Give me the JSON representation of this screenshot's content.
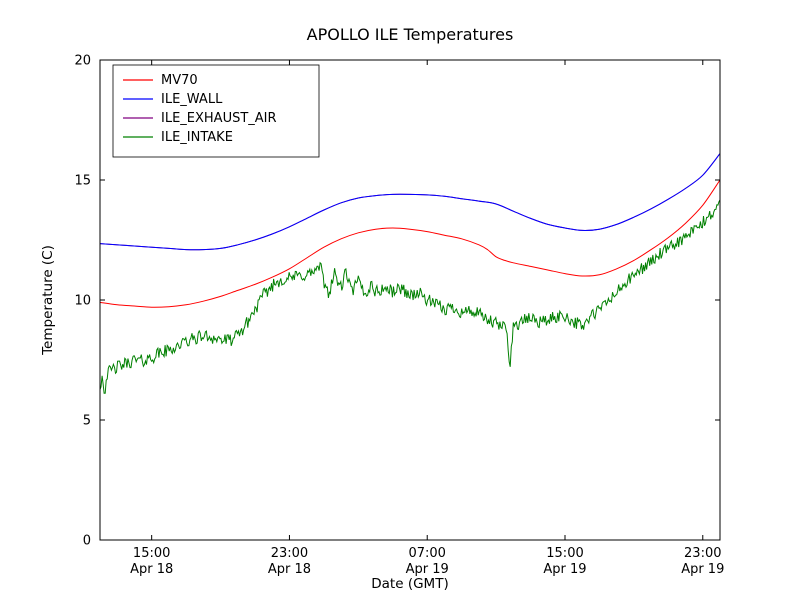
{
  "figure": {
    "background": "#ffffff"
  },
  "chart_data": {
    "type": "line",
    "title": "APOLLO ILE Temperatures",
    "xlabel": "Date (GMT)",
    "ylabel": "Temperature (C)",
    "grid": false,
    "ylim": [
      0,
      20
    ],
    "y_ticks": [
      0,
      5,
      10,
      15,
      20
    ],
    "x_axis": {
      "unit": "hours since Apr 18 12:00 GMT",
      "range": [
        0,
        36
      ],
      "ticks": [
        {
          "t": 3,
          "time": "15:00",
          "date": "Apr 18"
        },
        {
          "t": 11,
          "time": "23:00",
          "date": "Apr 18"
        },
        {
          "t": 19,
          "time": "07:00",
          "date": "Apr 19"
        },
        {
          "t": 27,
          "time": "15:00",
          "date": "Apr 19"
        },
        {
          "t": 35,
          "time": "23:00",
          "date": "Apr 19"
        }
      ]
    },
    "legend": {
      "position": "upper-left"
    },
    "series": [
      {
        "name": "MV70",
        "color": "#ff0000",
        "zorder": 3,
        "noise": 0,
        "x": [
          0,
          1,
          2,
          3,
          4,
          5,
          6,
          7,
          8,
          9,
          10,
          11,
          12,
          13,
          14,
          15,
          16,
          17,
          18,
          19,
          20,
          21,
          22,
          22.5,
          23,
          23.5,
          24,
          25,
          26,
          27,
          28,
          29,
          30,
          31,
          32,
          33,
          34,
          35,
          36
        ],
        "y": [
          9.9,
          9.8,
          9.75,
          9.7,
          9.72,
          9.8,
          9.95,
          10.15,
          10.4,
          10.65,
          10.95,
          11.3,
          11.75,
          12.2,
          12.55,
          12.8,
          12.95,
          13.0,
          12.95,
          12.85,
          12.7,
          12.55,
          12.3,
          12.1,
          11.8,
          11.65,
          11.55,
          11.4,
          11.25,
          11.1,
          11.0,
          11.05,
          11.3,
          11.65,
          12.1,
          12.6,
          13.2,
          13.95,
          15.0
        ]
      },
      {
        "name": "ILE_WALL",
        "color": "#0000ff",
        "zorder": 2,
        "noise": 0,
        "x": [
          0,
          2,
          4,
          5,
          6,
          7,
          8,
          9,
          10,
          11,
          12,
          13,
          14,
          15,
          16,
          17,
          18,
          19,
          20,
          21,
          22,
          23,
          24,
          25,
          26,
          27,
          28,
          29,
          30,
          31,
          32,
          33,
          34,
          35,
          36
        ],
        "y": [
          12.35,
          12.25,
          12.15,
          12.1,
          12.1,
          12.15,
          12.3,
          12.5,
          12.75,
          13.05,
          13.4,
          13.75,
          14.05,
          14.25,
          14.35,
          14.4,
          14.4,
          14.38,
          14.32,
          14.22,
          14.12,
          14.0,
          13.7,
          13.4,
          13.15,
          13.0,
          12.9,
          12.95,
          13.15,
          13.45,
          13.8,
          14.2,
          14.65,
          15.2,
          16.1
        ]
      },
      {
        "name": "ILE_EXHAUST_AIR",
        "color": "#800080",
        "zorder": 1,
        "noise": 0,
        "x": [
          0,
          2,
          4,
          5,
          6,
          7,
          8,
          9,
          10,
          11,
          12,
          13,
          14,
          15,
          16,
          17,
          18,
          19,
          20,
          21,
          22,
          23,
          24,
          25,
          26,
          27,
          28,
          29,
          30,
          31,
          32,
          33,
          34,
          35,
          36
        ],
        "y": [
          12.35,
          12.25,
          12.15,
          12.1,
          12.1,
          12.15,
          12.3,
          12.5,
          12.75,
          13.05,
          13.4,
          13.75,
          14.05,
          14.25,
          14.35,
          14.4,
          14.4,
          14.38,
          14.32,
          14.22,
          14.12,
          14.0,
          13.7,
          13.4,
          13.15,
          13.0,
          12.9,
          12.95,
          13.15,
          13.45,
          13.8,
          14.2,
          14.65,
          15.2,
          16.1
        ]
      },
      {
        "name": "ILE_INTAKE",
        "color": "#008000",
        "zorder": 4,
        "noise": 0.27,
        "seed": 42,
        "step": 0.06,
        "x": [
          0,
          0.15,
          0.25,
          0.4,
          0.7,
          1,
          1.5,
          2,
          2.5,
          3,
          3.5,
          4,
          4.5,
          5,
          5.5,
          6,
          6.5,
          7,
          7.5,
          8,
          8.5,
          9,
          9.5,
          10,
          10.5,
          11,
          11.5,
          12,
          12.5,
          12.8,
          13,
          13.3,
          13.6,
          14,
          14.3,
          14.6,
          15,
          15.4,
          15.8,
          16,
          16.5,
          17,
          17.5,
          18,
          18.5,
          19,
          19.5,
          20,
          20.5,
          21,
          21.5,
          22,
          22.5,
          23,
          23.3,
          23.6,
          23.8,
          24,
          24.5,
          25,
          25.5,
          26,
          26.5,
          27,
          27.5,
          28,
          28.5,
          29,
          29.5,
          30,
          30.5,
          31,
          31.5,
          32,
          32.5,
          33,
          33.5,
          34,
          34.5,
          35,
          35.5,
          35.8,
          36
        ],
        "y": [
          6.4,
          6.9,
          6.1,
          6.9,
          7.1,
          7.2,
          7.35,
          7.5,
          7.45,
          7.6,
          7.8,
          7.9,
          8.1,
          8.25,
          8.4,
          8.5,
          8.45,
          8.35,
          8.3,
          8.5,
          9.0,
          9.6,
          10.2,
          10.6,
          10.85,
          10.9,
          11.0,
          11.05,
          11.2,
          11.4,
          10.7,
          10.3,
          11.1,
          10.5,
          11.2,
          10.3,
          10.8,
          10.2,
          10.7,
          10.3,
          10.5,
          10.35,
          10.5,
          10.2,
          10.3,
          10.0,
          9.8,
          9.6,
          9.7,
          9.5,
          9.55,
          9.4,
          9.15,
          9.0,
          8.9,
          8.85,
          7.3,
          8.9,
          9.1,
          9.25,
          9.1,
          9.15,
          9.3,
          9.35,
          9.1,
          8.9,
          9.3,
          9.6,
          9.95,
          10.3,
          10.7,
          11.0,
          11.35,
          11.6,
          11.9,
          12.1,
          12.4,
          12.6,
          12.9,
          13.2,
          13.6,
          13.8,
          14.2
        ]
      }
    ]
  }
}
